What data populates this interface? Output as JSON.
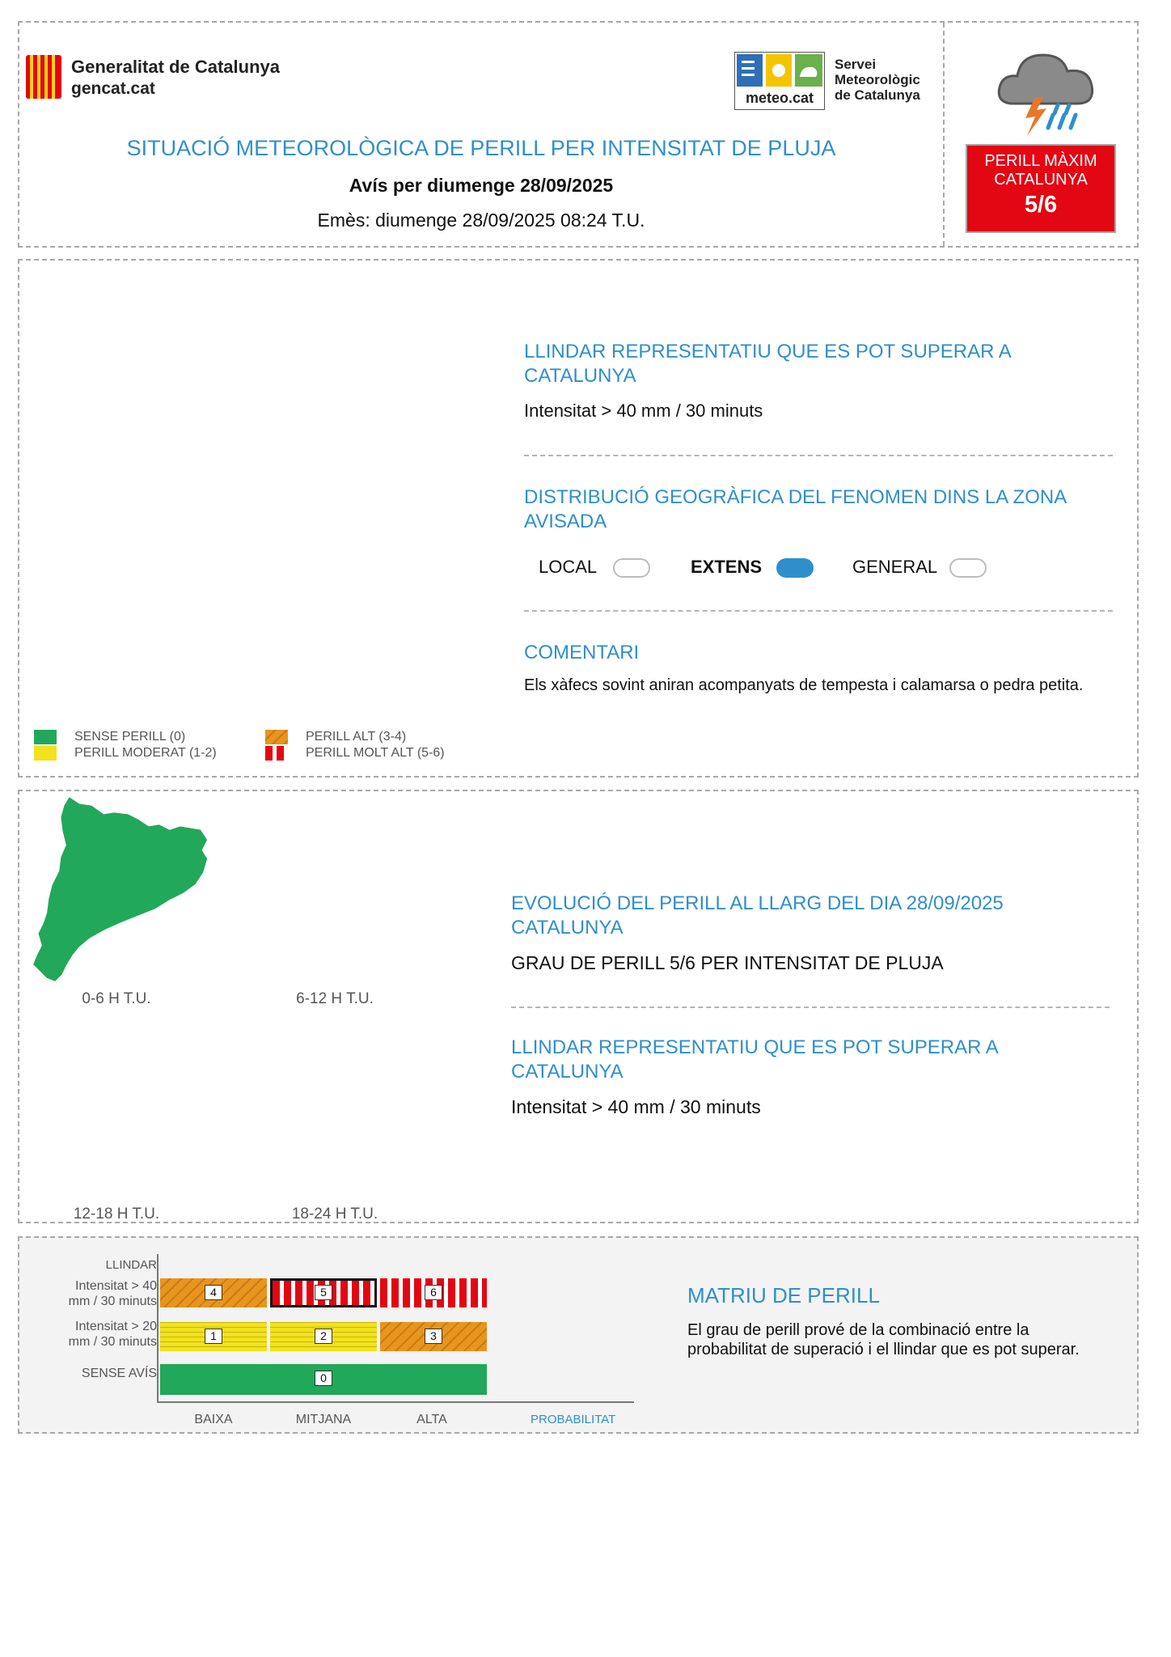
{
  "header": {
    "org_name": "Generalitat de Catalunya",
    "org_url": "gencat.cat",
    "meteo_logo_text": "meteo.cat",
    "service_lines": [
      "Servei",
      "Meteorològic",
      "de Catalunya"
    ],
    "title": "SITUACIÓ METEOROLÒGICA DE PERILL PER INTENSITAT DE PLUJA",
    "subtitle": "Avís per diumenge 28/09/2025",
    "issued": "Emès: diumenge 28/09/2025 08:24 T.U.",
    "badge": {
      "line1": "PERILL MÀXIM",
      "line2": "CATALUNYA",
      "level": "5/6"
    }
  },
  "section1": {
    "threshold_title": "LLINDAR REPRESENTATIU QUE ES POT SUPERAR A CATALUNYA",
    "threshold_value": "Intensitat > 40 mm / 30 minuts",
    "distribution_title": "DISTRIBUCIÓ GEOGRÀFICA DEL FENOMEN DINS LA ZONA AVISADA",
    "distribution_options": [
      {
        "label": "LOCAL",
        "selected": false
      },
      {
        "label": "EXTENS",
        "selected": true
      },
      {
        "label": "GENERAL",
        "selected": false
      }
    ],
    "comment_title": "COMENTARI",
    "comment_text": "Els xàfecs sovint aniran acompanyats de tempesta i calamarsa o pedra petita.",
    "legend": [
      {
        "label": "SENSE PERILL (0)",
        "color": "#22a85a"
      },
      {
        "label": "PERILL MODERAT (1-2)",
        "color": "#f2e21e"
      },
      {
        "label": "PERILL ALT (3-4)",
        "color": "#e8951e"
      },
      {
        "label": "PERILL MOLT ALT (5-6)",
        "color": "#e30613"
      }
    ]
  },
  "section2": {
    "maps": [
      {
        "label": "0-6 H T.U."
      },
      {
        "label": "6-12 H T.U."
      },
      {
        "label": "12-18 H T.U."
      },
      {
        "label": "18-24 H T.U."
      }
    ],
    "evolution_title": "EVOLUCIÓ DEL PERILL AL LLARG DEL DIA 28/09/2025 CATALUNYA",
    "evolution_text": "GRAU DE PERILL 5/6 PER INTENSITAT DE PLUJA",
    "threshold_title": "LLINDAR REPRESENTATIU QUE ES POT SUPERAR A CATALUNYA",
    "threshold_value": "Intensitat > 40 mm / 30 minuts"
  },
  "section3": {
    "ylabel": "LLINDAR",
    "rows": [
      {
        "label_line1": "Intensitat > 40",
        "label_line2": "mm / 30 minuts",
        "cells": [
          "4",
          "5",
          "6"
        ]
      },
      {
        "label_line1": "Intensitat > 20",
        "label_line2": "mm / 30 minuts",
        "cells": [
          "1",
          "2",
          "3"
        ]
      },
      {
        "label_line1": "SENSE AVÍS",
        "label_line2": "",
        "cells": [
          "0"
        ]
      }
    ],
    "xlabels": [
      "BAIXA",
      "MITJANA",
      "ALTA"
    ],
    "xlabel": "PROBABILITAT",
    "title": "MATRIU DE PERILL",
    "text": "El grau de perill prové de la combinació entre la probabilitat de superació i el llindar que es pot superar."
  },
  "colors": {
    "accent_blue": "#2f8fcb",
    "green": "#22a85a",
    "yellow": "#f2e21e",
    "orange": "#e8951e",
    "red": "#e30613"
  }
}
